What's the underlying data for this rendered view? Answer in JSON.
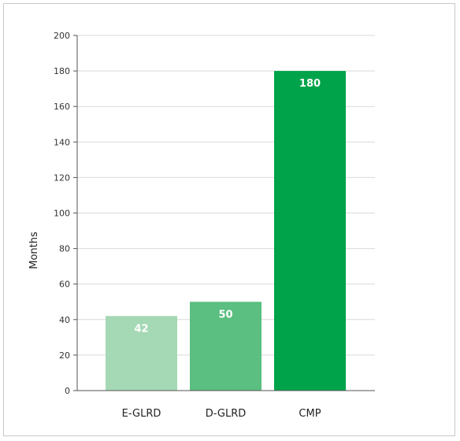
{
  "chart_data": {
    "type": "bar",
    "title": "",
    "xlabel": "",
    "ylabel": "Months",
    "ylim": [
      0,
      200
    ],
    "yticks": [
      0,
      20,
      40,
      60,
      80,
      100,
      120,
      140,
      160,
      180,
      200
    ],
    "grid": true,
    "categories": [
      "E-GLRD",
      "D-GLRD",
      "CMP"
    ],
    "values": [
      42,
      50,
      180
    ],
    "data_labels": [
      "42",
      "50",
      "180"
    ],
    "colors": [
      "#a5d8b4",
      "#5abf80",
      "#00a34a"
    ],
    "grid_color": "#d9d9d9",
    "axis_color": "#555555"
  }
}
